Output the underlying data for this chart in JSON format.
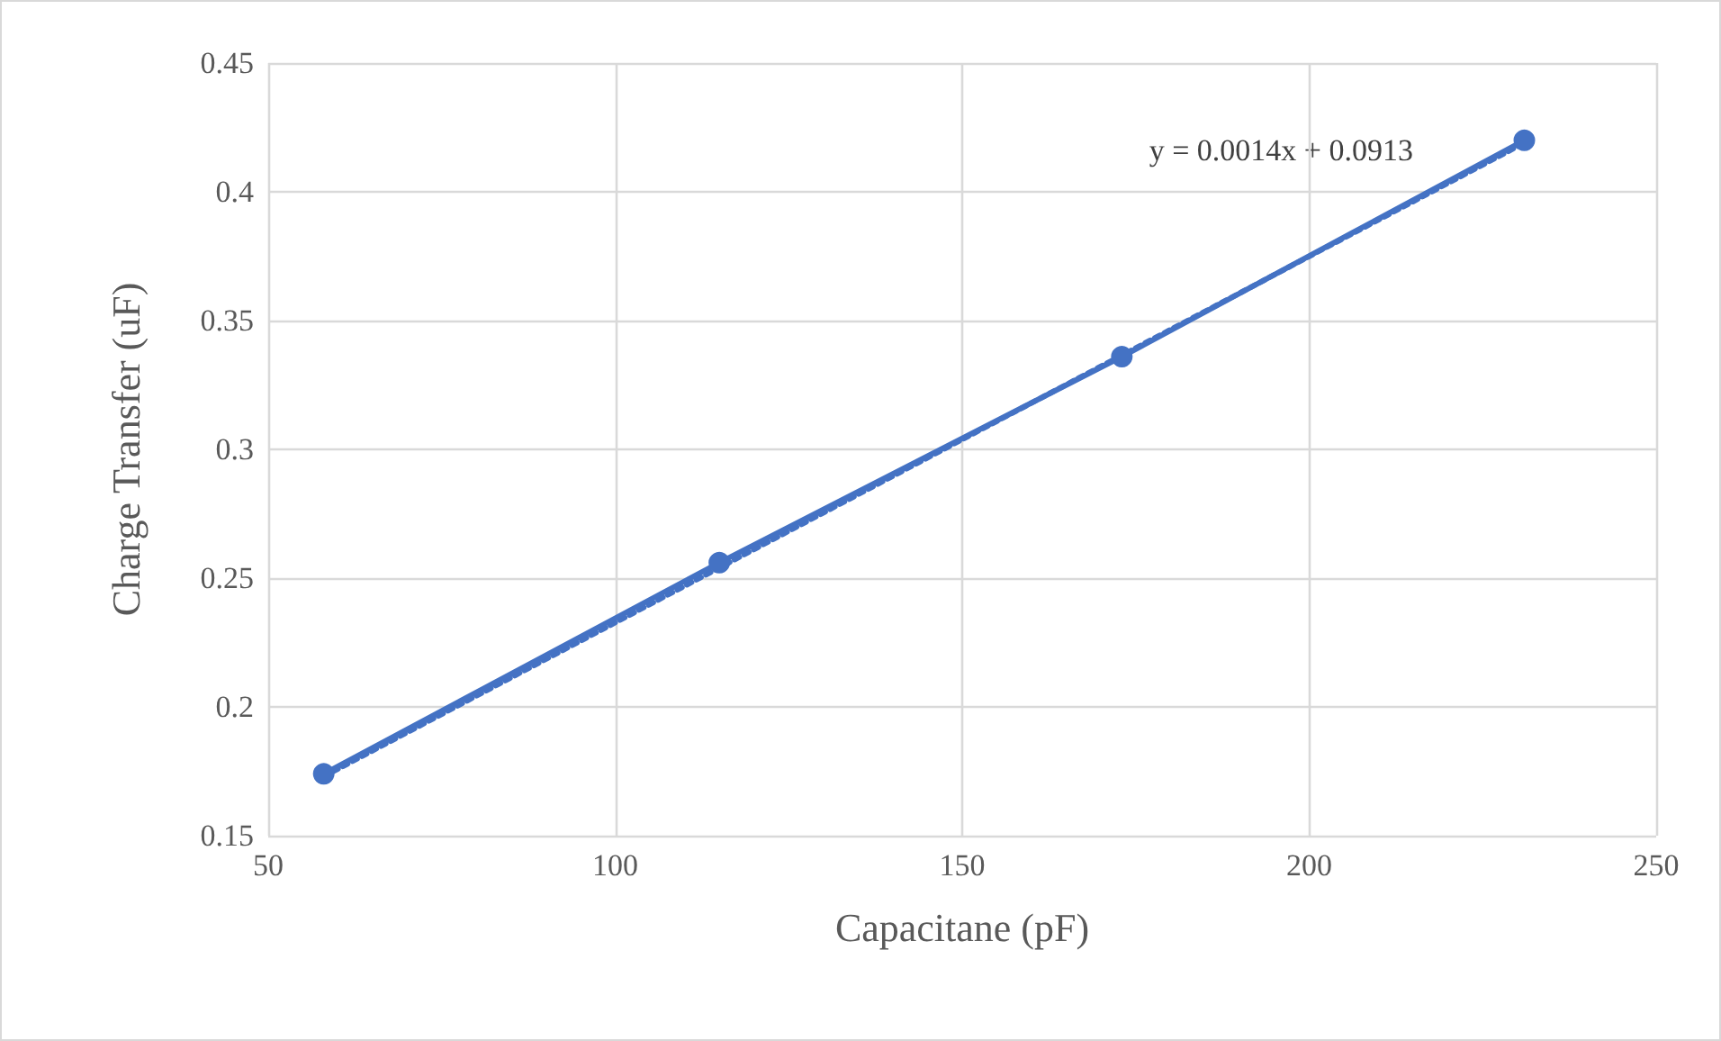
{
  "chart_data": {
    "type": "line",
    "xlabel": "Capacitane (pF)",
    "ylabel": "Charge Transfer (uF)",
    "x": [
      58,
      115,
      173,
      231
    ],
    "series": [
      {
        "color": "#4472c4",
        "values": [
          0.174,
          0.256,
          0.336,
          0.42
        ],
        "marker": "circle",
        "line_style": "solid"
      },
      {
        "type": "line",
        "color": "#4472c4",
        "x": [
          58,
          231
        ],
        "values": [
          0.173,
          0.419
        ],
        "marker": "none",
        "line_style": "dotted"
      }
    ],
    "annotations": [
      "y = 0.0014x + 0.0913"
    ],
    "xlim": [
      50,
      250
    ],
    "xticks": [
      50,
      100,
      150,
      200,
      250
    ],
    "ylim": [
      0.15,
      0.45
    ],
    "yticks": [
      0.15,
      0.2,
      0.25,
      0.3,
      0.35,
      0.4,
      0.45
    ],
    "grid": true
  }
}
